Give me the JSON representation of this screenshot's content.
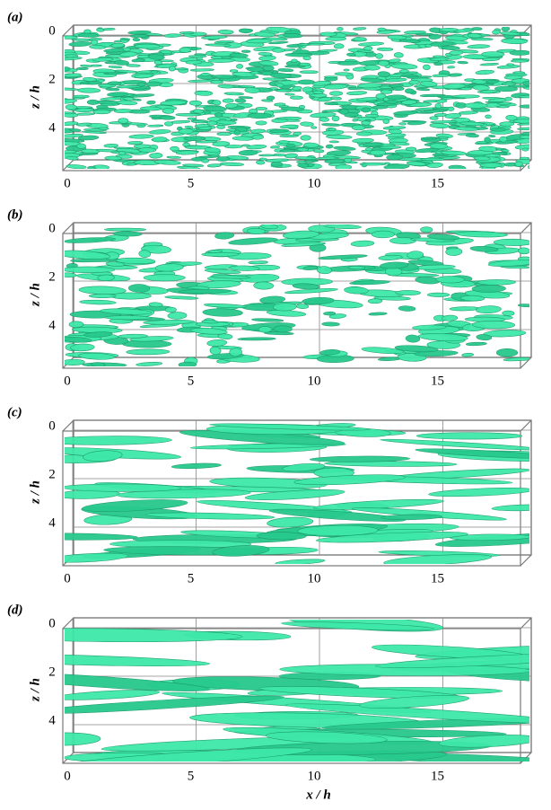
{
  "panels": [
    {
      "label": "(a)",
      "ylabel": "z / h",
      "yticks": [
        0,
        2,
        4
      ],
      "xticks": [
        0,
        5,
        10,
        15
      ]
    },
    {
      "label": "(b)",
      "ylabel": "z / h",
      "yticks": [
        0,
        2,
        4
      ],
      "xticks": [
        0,
        5,
        10,
        15
      ]
    },
    {
      "label": "(c)",
      "ylabel": "z / h",
      "yticks": [
        0,
        2,
        4
      ],
      "xticks": [
        0,
        5,
        10,
        15
      ]
    },
    {
      "label": "(d)",
      "ylabel": "z / h",
      "yticks": [
        0,
        2,
        4
      ],
      "xticks": [
        0,
        5,
        10,
        15
      ]
    }
  ],
  "xlabel": "x / h"
}
